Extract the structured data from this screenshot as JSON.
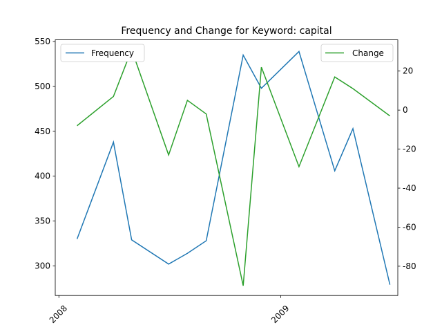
{
  "chart_data": {
    "type": "line",
    "title": "Frequency and Change for Keyword: capital",
    "x": [
      "2008-01-31",
      "2008-03-31",
      "2008-04-30",
      "2008-06-30",
      "2008-07-31",
      "2008-08-31",
      "2008-10-31",
      "2008-11-30",
      "2009-01-31",
      "2009-03-31",
      "2009-04-30",
      "2009-06-30"
    ],
    "x_ticks": [
      "2008",
      "2009"
    ],
    "series": [
      {
        "name": "Frequency",
        "axis": "left",
        "color": "#1f77b4",
        "values": [
          330,
          438,
          329,
          302,
          314,
          328,
          535,
          498,
          539,
          406,
          453,
          279
        ]
      },
      {
        "name": "Change",
        "axis": "right",
        "color": "#2ca02c",
        "values": [
          -8,
          7,
          31,
          -23,
          5,
          -2,
          -90,
          22,
          -29,
          17,
          11,
          -3
        ]
      }
    ],
    "y_left": {
      "ticks": [
        300,
        350,
        400,
        450,
        500,
        550
      ],
      "ylim": [
        267,
        552
      ]
    },
    "y_right": {
      "ticks": [
        -80,
        -60,
        -40,
        -20,
        0,
        20
      ],
      "ylim": [
        -95,
        36
      ]
    },
    "legend_left": "upper-left",
    "legend_right": "upper-right",
    "grid": false
  }
}
